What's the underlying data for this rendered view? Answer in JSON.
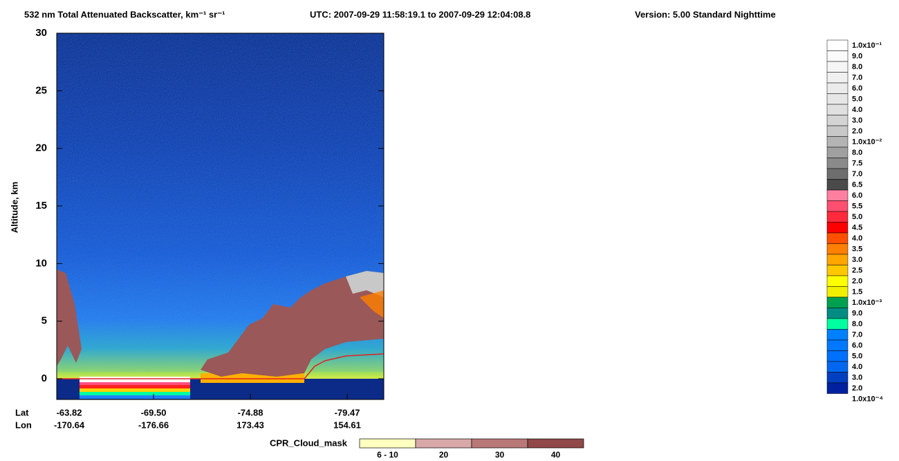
{
  "chart_data": {
    "type": "heatmap",
    "title": "532 nm Total Attenuated Backscatter, km⁻¹ sr⁻¹",
    "subtitle": "UTC:  2007-09-29 11:58:19.1  to  2007-09-29 12:04:08.8",
    "version": "Version: 5.00  Standard  Nighttime",
    "ylabel": "Altitude, km",
    "ylim": [
      -1.8,
      30
    ],
    "yticks": [
      0,
      5,
      10,
      15,
      20,
      25,
      30
    ],
    "x_row_labels": [
      "Lat",
      "Lon"
    ],
    "lat": [
      "-63.82",
      "-69.50",
      "-74.88",
      "-79.47"
    ],
    "lon": [
      "-170.64",
      "-176.66",
      "173.43",
      "154.61"
    ],
    "colorbar": {
      "labels": [
        "1.0x10⁻¹",
        "9.0",
        "8.0",
        "7.0",
        "6.0",
        "5.0",
        "4.0",
        "3.0",
        "2.0",
        "1.0x10⁻²",
        "8.0",
        "7.5",
        "7.0",
        "6.5",
        "6.0",
        "5.5",
        "5.0",
        "4.5",
        "4.0",
        "3.5",
        "3.0",
        "2.5",
        "2.0",
        "1.5",
        "1.0x10⁻³",
        "9.0",
        "8.0",
        "7.0",
        "6.0",
        "5.0",
        "4.0",
        "3.0",
        "2.0",
        "1.0x10⁻⁴"
      ],
      "colors": [
        "#ffffff",
        "#fafafa",
        "#f5f5f5",
        "#f0f0f0",
        "#ebebeb",
        "#e6e6e6",
        "#e0e0e0",
        "#d4d4d4",
        "#c8c8c8",
        "#b4b4b4",
        "#a0a0a0",
        "#8a8a8a",
        "#6e6e6e",
        "#4a4a4a",
        "#ff7fa0",
        "#ff4f70",
        "#ff2a3c",
        "#ff0000",
        "#ff5000",
        "#ff8000",
        "#ffa500",
        "#ffc800",
        "#ffff00",
        "#f0f000",
        "#00a050",
        "#008c82",
        "#00ffa0",
        "#0080ff",
        "#0078ff",
        "#0070ff",
        "#0068f0",
        "#0040c0",
        "#0020a0"
      ]
    },
    "cpr_legend": {
      "title": "CPR_Cloud_mask",
      "labels": [
        "6 - 10",
        "20",
        "30",
        "40"
      ],
      "colors": [
        "#ffffc0",
        "#d8a8a8",
        "#b87878",
        "#904848"
      ]
    }
  }
}
